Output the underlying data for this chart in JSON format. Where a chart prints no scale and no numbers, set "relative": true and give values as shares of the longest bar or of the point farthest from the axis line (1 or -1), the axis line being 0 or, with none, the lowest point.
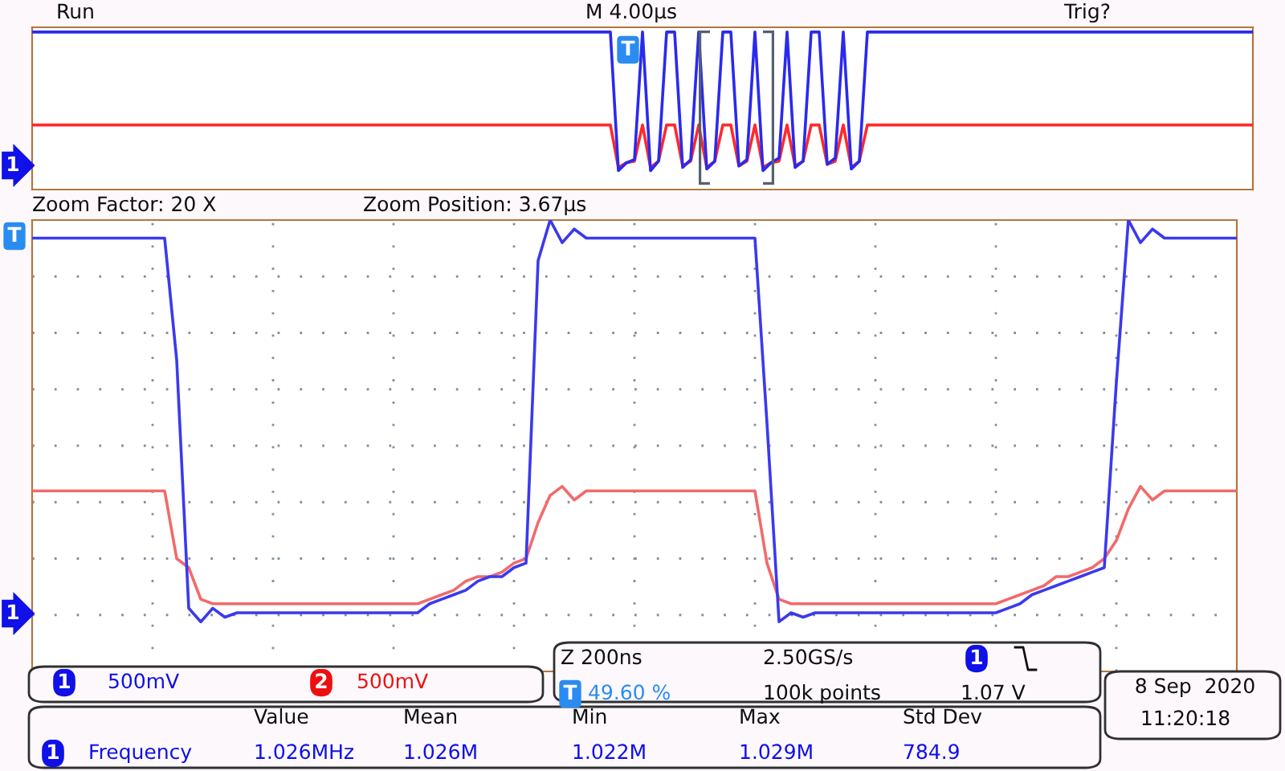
{
  "chart_data": [
    {
      "type": "line",
      "relative": true,
      "grid": false,
      "line_style": "solid",
      "annotations": [
        "Run",
        "M 4.00µs",
        "Trig?",
        "T",
        "1"
      ],
      "categories": [
        null,
        null,
        null,
        null,
        null,
        null,
        null,
        null,
        null,
        null,
        null,
        null,
        null,
        null,
        null,
        null,
        null,
        null,
        null,
        null,
        null,
        null,
        null,
        null,
        null,
        null,
        null,
        null,
        null,
        null,
        null,
        null,
        null,
        null,
        null,
        null,
        null,
        null,
        null,
        null,
        null,
        null,
        null,
        null,
        null,
        null,
        null,
        null,
        null,
        null,
        null,
        null,
        null,
        null,
        null,
        null,
        null,
        null,
        null,
        null,
        null,
        null,
        null,
        null,
        null,
        null,
        null,
        null,
        null,
        null,
        null,
        null,
        null,
        null,
        null,
        null,
        null,
        null,
        null,
        null,
        null,
        null,
        null,
        null,
        null,
        null,
        null,
        null,
        null,
        null,
        null,
        null,
        null,
        null,
        null,
        null,
        null,
        null,
        null,
        null,
        null,
        null,
        null,
        null,
        null,
        null,
        null,
        null,
        null,
        null,
        null,
        null,
        null,
        null,
        null,
        null,
        null,
        null,
        null,
        null,
        null,
        null,
        null,
        null,
        null,
        null,
        null,
        null,
        null,
        null,
        null,
        null,
        null,
        null,
        null,
        null,
        null,
        null,
        null,
        null,
        null,
        null,
        null,
        null,
        null,
        null,
        null,
        null,
        null,
        null,
        null,
        null,
        null
      ],
      "series": [
        {
          "color": "#ff2a2a",
          "values": [
            0.41,
            0.41,
            0.41,
            0.41,
            0.41,
            0.41,
            0.41,
            0.41,
            0.41,
            0.41,
            0.41,
            0.41,
            0.41,
            0.41,
            0.41,
            0.41,
            0.41,
            0.41,
            0.41,
            0.41,
            0.41,
            0.41,
            0.41,
            0.41,
            0.41,
            0.41,
            0.41,
            0.41,
            0.41,
            0.41,
            0.41,
            0.41,
            0.41,
            0.41,
            0.41,
            0.41,
            0.41,
            0.41,
            0.41,
            0.41,
            0.41,
            0.41,
            0.41,
            0.41,
            0.41,
            0.41,
            0.41,
            0.41,
            0.41,
            0.41,
            0.41,
            0.41,
            0.41,
            0.41,
            0.41,
            0.41,
            0.41,
            0.41,
            0.41,
            0.41,
            0.41,
            0.41,
            0.41,
            0.41,
            0.41,
            0.41,
            0.41,
            0.41,
            0.41,
            0.41,
            0.41,
            0.41,
            0.41,
            0.14,
            0.17,
            0.18,
            0.41,
            0.14,
            0.18,
            0.41,
            0.41,
            0.15,
            0.18,
            0.41,
            0.14,
            0.18,
            0.41,
            0.41,
            0.15,
            0.18,
            0.41,
            0.14,
            0.17,
            0.18,
            0.41,
            0.15,
            0.18,
            0.41,
            0.41,
            0.16,
            0.18,
            0.41,
            0.14,
            0.18,
            0.41,
            0.41,
            0.41,
            0.41,
            0.41,
            0.41,
            0.41,
            0.41,
            0.41,
            0.41,
            0.41,
            0.41,
            0.41,
            0.41,
            0.41,
            0.41,
            0.41,
            0.41,
            0.41,
            0.41,
            0.41,
            0.41,
            0.41,
            0.41,
            0.41,
            0.41,
            0.41,
            0.41,
            0.41,
            0.41,
            0.41,
            0.41,
            0.41,
            0.41,
            0.41,
            0.41,
            0.41,
            0.41,
            0.41,
            0.41,
            0.41,
            0.41,
            0.41,
            0.41,
            0.41,
            0.41,
            0.41,
            0.41,
            0.41
          ]
        },
        {
          "color": "#2a2aee",
          "values": [
            1,
            1,
            1,
            1,
            1,
            1,
            1,
            1,
            1,
            1,
            1,
            1,
            1,
            1,
            1,
            1,
            1,
            1,
            1,
            1,
            1,
            1,
            1,
            1,
            1,
            1,
            1,
            1,
            1,
            1,
            1,
            1,
            1,
            1,
            1,
            1,
            1,
            1,
            1,
            1,
            1,
            1,
            1,
            1,
            1,
            1,
            1,
            1,
            1,
            1,
            1,
            1,
            1,
            1,
            1,
            1,
            1,
            1,
            1,
            1,
            1,
            1,
            1,
            1,
            1,
            1,
            1,
            1,
            1,
            1,
            1,
            1,
            1,
            0.12,
            0.17,
            0.19,
            1,
            0.12,
            0.18,
            1,
            1,
            0.14,
            0.19,
            1,
            0.13,
            0.18,
            1,
            1,
            0.15,
            0.19,
            1,
            0.12,
            0.17,
            0.2,
            1,
            0.14,
            0.18,
            1,
            1,
            0.16,
            0.2,
            1,
            0.13,
            0.18,
            1,
            1,
            1,
            1,
            1,
            1,
            1,
            1,
            1,
            1,
            1,
            1,
            1,
            1,
            1,
            1,
            1,
            1,
            1,
            1,
            1,
            1,
            1,
            1,
            1,
            1,
            1,
            1,
            1,
            1,
            1,
            1,
            1,
            1,
            1,
            1,
            1,
            1,
            1,
            1,
            1,
            1,
            1,
            1,
            1,
            1,
            1,
            1,
            1
          ]
        }
      ]
    },
    {
      "type": "line",
      "relative": true,
      "grid": true,
      "line_style": "solid",
      "annotations": [
        "Zoom Factor: 20 X",
        "Zoom Position: 3.67µs",
        "T",
        "1",
        "1",
        "500mV",
        "2",
        "500mV",
        "Z 200ns",
        "2.50GS/s",
        "1",
        "T",
        "49.60 %",
        "100k points",
        "1.07 V",
        "1",
        "Frequency",
        "Value",
        "1.026MHz",
        "Mean",
        "1.026M",
        "Min",
        "1.022M",
        "Max",
        "1.029M",
        "Std Dev",
        "784.9",
        "8 Sep  2020",
        "11:20:18"
      ],
      "categories": [
        null,
        null,
        null,
        null,
        null,
        null,
        null,
        null,
        null,
        null,
        null,
        null,
        null,
        null,
        null,
        null,
        null,
        null,
        null,
        null,
        null,
        null,
        null,
        null,
        null,
        null,
        null,
        null,
        null,
        null,
        null,
        null,
        null,
        null,
        null,
        null,
        null,
        null,
        null,
        null,
        null,
        null,
        null,
        null,
        null,
        null,
        null,
        null,
        null,
        null,
        null,
        null,
        null,
        null,
        null,
        null,
        null,
        null,
        null,
        null,
        null,
        null,
        null,
        null,
        null,
        null,
        null,
        null,
        null,
        null,
        null,
        null,
        null,
        null,
        null,
        null,
        null,
        null,
        null,
        null,
        null,
        null,
        null,
        null,
        null,
        null,
        null,
        null,
        null,
        null,
        null,
        null,
        null,
        null,
        null,
        null,
        null,
        null,
        null,
        null,
        null
      ],
      "series": [
        {
          "color": "#f26a6a",
          "values": [
            0.4,
            0.4,
            0.4,
            0.4,
            0.4,
            0.4,
            0.4,
            0.4,
            0.4,
            0.4,
            0.4,
            0.4,
            0.25,
            0.23,
            0.16,
            0.15,
            0.15,
            0.15,
            0.15,
            0.15,
            0.15,
            0.15,
            0.15,
            0.15,
            0.15,
            0.15,
            0.15,
            0.15,
            0.15,
            0.15,
            0.15,
            0.15,
            0.15,
            0.16,
            0.17,
            0.18,
            0.2,
            0.21,
            0.21,
            0.22,
            0.24,
            0.25,
            0.33,
            0.39,
            0.41,
            0.38,
            0.4,
            0.4,
            0.4,
            0.4,
            0.4,
            0.4,
            0.4,
            0.4,
            0.4,
            0.4,
            0.4,
            0.4,
            0.4,
            0.4,
            0.4,
            0.24,
            0.16,
            0.15,
            0.15,
            0.15,
            0.15,
            0.15,
            0.15,
            0.15,
            0.15,
            0.15,
            0.15,
            0.15,
            0.15,
            0.15,
            0.15,
            0.15,
            0.15,
            0.15,
            0.15,
            0.16,
            0.17,
            0.18,
            0.19,
            0.21,
            0.21,
            0.22,
            0.23,
            0.25,
            0.29,
            0.36,
            0.41,
            0.38,
            0.4,
            0.4,
            0.4,
            0.4,
            0.4,
            0.4,
            0.4
          ]
        },
        {
          "color": "#3a3aee",
          "values": [
            0.96,
            0.96,
            0.96,
            0.96,
            0.96,
            0.96,
            0.96,
            0.96,
            0.96,
            0.96,
            0.96,
            0.96,
            0.69,
            0.14,
            0.11,
            0.14,
            0.12,
            0.13,
            0.13,
            0.13,
            0.13,
            0.13,
            0.13,
            0.13,
            0.13,
            0.13,
            0.13,
            0.13,
            0.13,
            0.13,
            0.13,
            0.13,
            0.13,
            0.15,
            0.16,
            0.17,
            0.18,
            0.2,
            0.21,
            0.21,
            0.23,
            0.24,
            0.91,
            1.0,
            0.95,
            0.98,
            0.96,
            0.96,
            0.96,
            0.96,
            0.96,
            0.96,
            0.96,
            0.96,
            0.96,
            0.96,
            0.96,
            0.96,
            0.96,
            0.96,
            0.96,
            0.55,
            0.11,
            0.13,
            0.12,
            0.13,
            0.13,
            0.13,
            0.13,
            0.13,
            0.13,
            0.13,
            0.13,
            0.13,
            0.13,
            0.13,
            0.13,
            0.13,
            0.13,
            0.13,
            0.13,
            0.14,
            0.15,
            0.17,
            0.18,
            0.19,
            0.2,
            0.21,
            0.22,
            0.23,
            0.64,
            1.0,
            0.95,
            0.98,
            0.96,
            0.96,
            0.96,
            0.96,
            0.96,
            0.96,
            0.96
          ]
        }
      ]
    }
  ]
}
